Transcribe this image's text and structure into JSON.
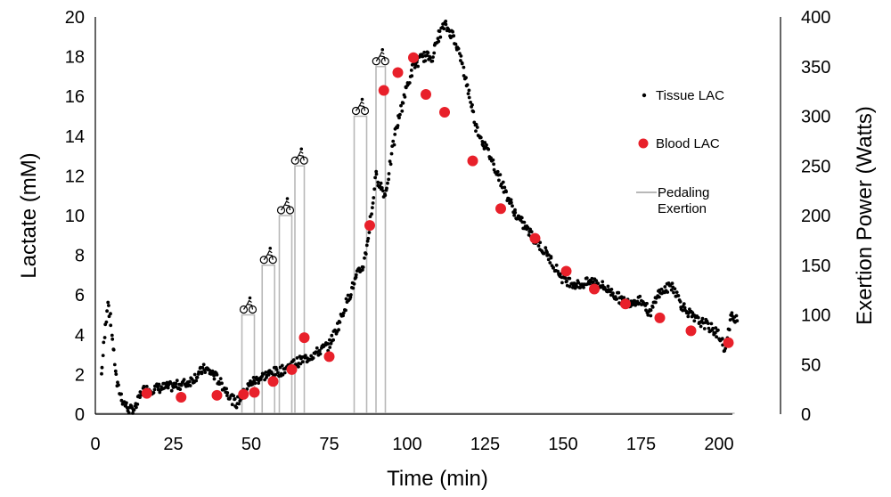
{
  "chart_data": {
    "type": "scatter",
    "xlabel": "Time (min)",
    "ylabel": "Lactate (mM)",
    "y2label": "Exertion Power (Watts)",
    "xlim": [
      0,
      210
    ],
    "ylim": [
      0,
      20
    ],
    "y2lim": [
      0,
      400
    ],
    "x_ticks": [
      0,
      25,
      50,
      75,
      100,
      125,
      150,
      175,
      200
    ],
    "y_ticks": [
      0,
      2,
      4,
      6,
      8,
      10,
      12,
      14,
      16,
      18,
      20
    ],
    "y2_ticks": [
      0,
      50,
      100,
      150,
      200,
      250,
      300,
      350,
      400
    ],
    "grid": false,
    "legend_position": "right",
    "colors": {
      "tissue": "#000000",
      "blood": "#e8202a",
      "exertion": "#b8b8b8"
    },
    "series": [
      {
        "name": "Tissue LAC",
        "kind": "dots",
        "trend": [
          [
            2,
            2.0
          ],
          [
            4,
            5.8
          ],
          [
            5,
            4.5
          ],
          [
            6,
            3.0
          ],
          [
            7,
            1.5
          ],
          [
            9,
            0.6
          ],
          [
            11,
            0.2
          ],
          [
            13,
            0.3
          ],
          [
            15,
            1.2
          ],
          [
            20,
            1.3
          ],
          [
            25,
            1.4
          ],
          [
            30,
            1.6
          ],
          [
            35,
            2.3
          ],
          [
            38,
            2.0
          ],
          [
            42,
            1.2
          ],
          [
            45,
            0.5
          ],
          [
            47,
            0.9
          ],
          [
            50,
            1.6
          ],
          [
            55,
            2.0
          ],
          [
            60,
            2.2
          ],
          [
            63,
            2.5
          ],
          [
            66,
            2.7
          ],
          [
            70,
            3.0
          ],
          [
            75,
            3.5
          ],
          [
            78,
            4.5
          ],
          [
            81,
            5.8
          ],
          [
            84,
            7.0
          ],
          [
            86,
            7.5
          ],
          [
            88,
            9.5
          ],
          [
            90,
            12.0
          ],
          [
            93,
            11.0
          ],
          [
            96,
            14.0
          ],
          [
            99,
            16.0
          ],
          [
            102,
            17.5
          ],
          [
            105,
            18.0
          ],
          [
            108,
            18.0
          ],
          [
            110,
            19.0
          ],
          [
            112,
            19.6
          ],
          [
            115,
            19.0
          ],
          [
            117,
            18.0
          ],
          [
            120,
            16.0
          ],
          [
            122,
            14.5
          ],
          [
            125,
            13.5
          ],
          [
            128,
            12.5
          ],
          [
            132,
            11.0
          ],
          [
            135,
            10.0
          ],
          [
            140,
            9.0
          ],
          [
            145,
            8.0
          ],
          [
            150,
            6.8
          ],
          [
            155,
            6.5
          ],
          [
            160,
            6.7
          ],
          [
            165,
            6.2
          ],
          [
            170,
            5.6
          ],
          [
            175,
            5.8
          ],
          [
            178,
            5.0
          ],
          [
            180,
            6.0
          ],
          [
            185,
            6.5
          ],
          [
            188,
            5.5
          ],
          [
            192,
            4.8
          ],
          [
            196,
            4.5
          ],
          [
            200,
            4.0
          ],
          [
            202,
            3.2
          ],
          [
            204,
            5.0
          ],
          [
            206,
            4.8
          ]
        ]
      },
      {
        "name": "Blood LAC",
        "kind": "markers",
        "points": [
          [
            16.5,
            1.05
          ],
          [
            27.5,
            0.85
          ],
          [
            39,
            0.95
          ],
          [
            47.5,
            1.0
          ],
          [
            51,
            1.1
          ],
          [
            57,
            1.65
          ],
          [
            63,
            2.25
          ],
          [
            67,
            3.85
          ],
          [
            75,
            2.9
          ],
          [
            88,
            9.5
          ],
          [
            92.5,
            16.3
          ],
          [
            97,
            17.2
          ],
          [
            102,
            17.95
          ],
          [
            106,
            16.1
          ],
          [
            112,
            15.2
          ],
          [
            121,
            12.75
          ],
          [
            130,
            10.35
          ],
          [
            141,
            8.85
          ],
          [
            151,
            7.2
          ],
          [
            160,
            6.3
          ],
          [
            170,
            5.55
          ],
          [
            181,
            4.85
          ],
          [
            191,
            4.2
          ],
          [
            203,
            3.6
          ]
        ]
      },
      {
        "name": "Pedaling\nExertion",
        "kind": "bars",
        "bars": [
          {
            "start": 47,
            "end": 51,
            "watts": 100
          },
          {
            "start": 53.5,
            "end": 57.5,
            "watts": 150
          },
          {
            "start": 59,
            "end": 63,
            "watts": 200
          },
          {
            "start": 64,
            "end": 67,
            "watts": 250
          },
          {
            "start": 83,
            "end": 87,
            "watts": 300
          },
          {
            "start": 90,
            "end": 93,
            "watts": 350
          }
        ]
      }
    ]
  }
}
